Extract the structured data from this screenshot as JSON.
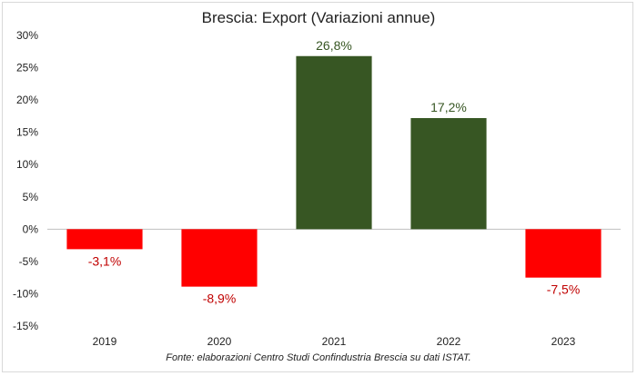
{
  "chart_data": {
    "type": "bar",
    "title": "Brescia: Export (Variazioni annue)",
    "categories": [
      "2019",
      "2020",
      "2021",
      "2022",
      "2023"
    ],
    "values": [
      -3.1,
      -8.9,
      26.8,
      17.2,
      -7.5
    ],
    "data_labels": [
      "-3,1%",
      "-8,9%",
      "26,8%",
      "17,2%",
      "-7,5%"
    ],
    "ylim": [
      -15,
      30
    ],
    "yticks": [
      30,
      25,
      20,
      15,
      10,
      5,
      0,
      -5,
      -10,
      -15
    ],
    "ytick_labels": [
      "30%",
      "25%",
      "20%",
      "15%",
      "10%",
      "5%",
      "0%",
      "-5%",
      "-10%",
      "-15%"
    ],
    "grid": false,
    "colors": {
      "positive_bar": "#375623",
      "negative_bar": "#ff0000",
      "positive_label": "#375623",
      "negative_label": "#c00000",
      "axis": "#bfbfbf"
    },
    "source": "Fonte: elaborazioni Centro Studi Confindustria Brescia su dati ISTAT."
  }
}
